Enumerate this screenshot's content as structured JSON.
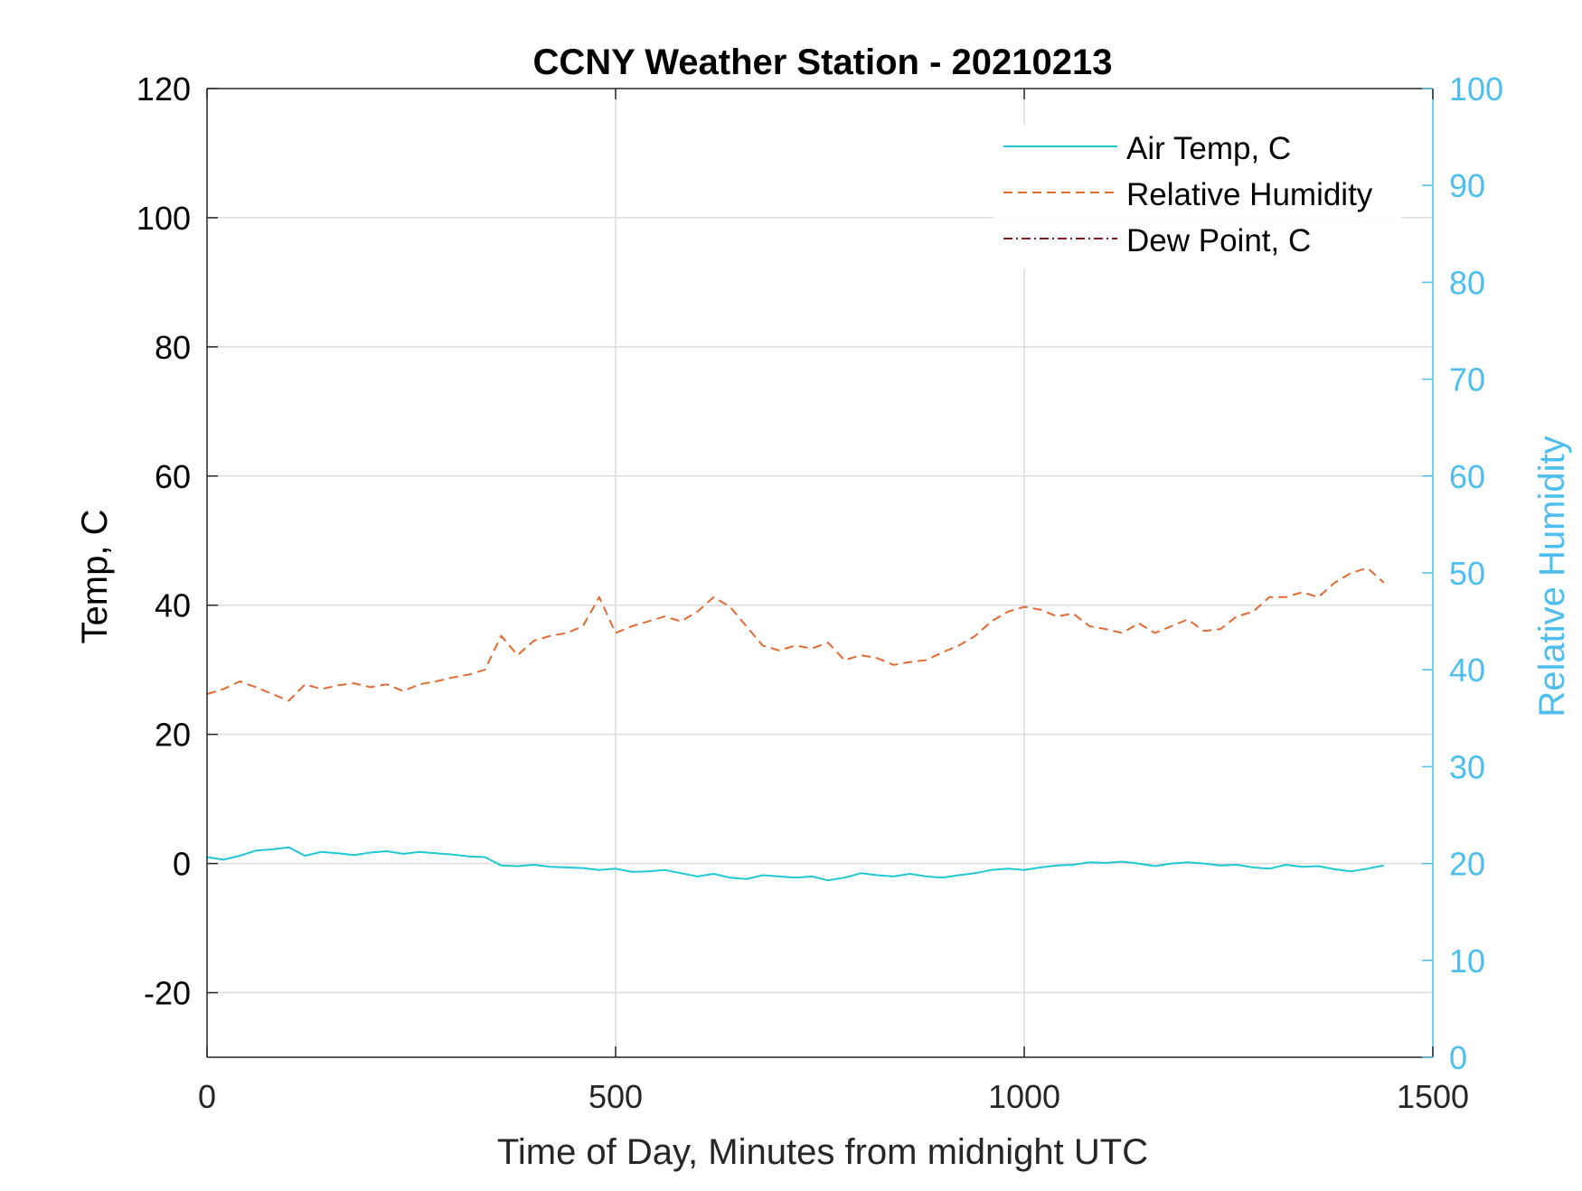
{
  "chart_data": {
    "type": "line",
    "title": "CCNY Weather Station - 20210213",
    "xlabel": "Time of Day, Minutes from midnight UTC",
    "ylabel_left": "Temp, C",
    "ylabel_right": "Relative Humidity",
    "xlim": [
      0,
      1500
    ],
    "ylim_left": [
      -30,
      120
    ],
    "ylim_right": [
      0,
      100
    ],
    "xticks": [
      0,
      500,
      1000,
      1500
    ],
    "xtick_labels": [
      "0",
      "500",
      "1000",
      "1500"
    ],
    "yticks_left": [
      -20,
      0,
      20,
      40,
      60,
      80,
      100,
      120
    ],
    "ytick_labels_left": [
      "-20",
      "0",
      "20",
      "40",
      "60",
      "80",
      "100",
      "120"
    ],
    "yticks_right": [
      0,
      10,
      20,
      30,
      40,
      50,
      60,
      70,
      80,
      90,
      100
    ],
    "ytick_labels_right": [
      "0",
      "10",
      "20",
      "30",
      "40",
      "50",
      "60",
      "70",
      "80",
      "90",
      "100"
    ],
    "grid": true,
    "legend_placement": "top-right",
    "colors": {
      "right_axis": "#4DBEEE",
      "air_temp": "#1FC8D4",
      "humidity": "#E06A32",
      "dew_point": "#8B1A1A",
      "grid": "#DCDCDC",
      "axis": "#262626"
    },
    "series": [
      {
        "name": "Air Temp, C",
        "axis": "left",
        "style": "solid",
        "x": [
          0,
          20,
          40,
          60,
          80,
          100,
          120,
          140,
          160,
          180,
          200,
          220,
          240,
          260,
          280,
          300,
          320,
          340,
          360,
          380,
          400,
          420,
          440,
          460,
          480,
          500,
          520,
          540,
          560,
          580,
          600,
          620,
          640,
          660,
          680,
          700,
          720,
          740,
          760,
          780,
          800,
          820,
          840,
          860,
          880,
          900,
          920,
          940,
          960,
          980,
          1000,
          1020,
          1040,
          1060,
          1080,
          1100,
          1120,
          1140,
          1160,
          1180,
          1200,
          1220,
          1240,
          1260,
          1280,
          1300,
          1320,
          1340,
          1360,
          1380,
          1400,
          1420,
          1440
        ],
        "y": [
          1.0,
          0.6,
          1.2,
          2.0,
          2.2,
          2.5,
          1.2,
          1.8,
          1.6,
          1.3,
          1.7,
          1.9,
          1.5,
          1.8,
          1.6,
          1.4,
          1.1,
          1.0,
          -0.3,
          -0.4,
          -0.2,
          -0.5,
          -0.6,
          -0.7,
          -1.0,
          -0.8,
          -1.3,
          -1.2,
          -1.0,
          -1.5,
          -2.0,
          -1.6,
          -2.2,
          -2.4,
          -1.8,
          -2.0,
          -2.2,
          -2.0,
          -2.6,
          -2.2,
          -1.5,
          -1.8,
          -2.0,
          -1.6,
          -2.0,
          -2.2,
          -1.8,
          -1.5,
          -1.0,
          -0.8,
          -1.0,
          -0.6,
          -0.3,
          -0.2,
          0.2,
          0.1,
          0.3,
          0.0,
          -0.4,
          0.0,
          0.2,
          0.0,
          -0.3,
          -0.2,
          -0.6,
          -0.8,
          -0.2,
          -0.5,
          -0.4,
          -0.9,
          -1.2,
          -0.8,
          -0.3
        ]
      },
      {
        "name": "Relative Humidity",
        "axis": "right",
        "style": "dashed",
        "x": [
          0,
          20,
          40,
          60,
          80,
          100,
          120,
          140,
          160,
          180,
          200,
          220,
          240,
          260,
          280,
          300,
          320,
          340,
          360,
          380,
          400,
          420,
          440,
          460,
          480,
          500,
          520,
          540,
          560,
          580,
          600,
          620,
          640,
          660,
          680,
          700,
          720,
          740,
          760,
          780,
          800,
          820,
          840,
          860,
          880,
          900,
          920,
          940,
          960,
          980,
          1000,
          1020,
          1040,
          1060,
          1080,
          1100,
          1120,
          1140,
          1160,
          1180,
          1200,
          1220,
          1240,
          1260,
          1280,
          1300,
          1320,
          1340,
          1360,
          1380,
          1400,
          1420,
          1440
        ],
        "y": [
          37.5,
          38.0,
          38.8,
          38.2,
          37.5,
          36.8,
          38.5,
          38.0,
          38.4,
          38.6,
          38.2,
          38.5,
          37.8,
          38.5,
          38.8,
          39.2,
          39.5,
          40.0,
          43.5,
          41.5,
          43.0,
          43.5,
          43.8,
          44.5,
          47.5,
          43.8,
          44.5,
          45.0,
          45.5,
          45.0,
          46.0,
          47.5,
          46.5,
          44.5,
          42.5,
          42.0,
          42.5,
          42.2,
          42.8,
          41.0,
          41.5,
          41.2,
          40.5,
          40.8,
          41.0,
          41.8,
          42.5,
          43.5,
          45.0,
          46.0,
          46.5,
          46.2,
          45.5,
          45.8,
          44.5,
          44.2,
          43.8,
          44.8,
          43.8,
          44.5,
          45.2,
          44.0,
          44.2,
          45.5,
          46.0,
          47.5,
          47.5,
          48.0,
          47.5,
          49.0,
          50.0,
          50.5,
          49.0
        ]
      },
      {
        "name": "Dew Point, C",
        "axis": "left",
        "style": "dash-dot",
        "x": [],
        "y": []
      }
    ]
  }
}
